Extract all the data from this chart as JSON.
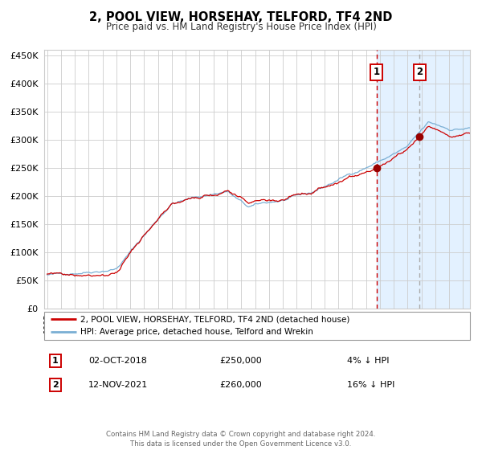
{
  "title": "2, POOL VIEW, HORSEHAY, TELFORD, TF4 2ND",
  "subtitle": "Price paid vs. HM Land Registry's House Price Index (HPI)",
  "legend_line1": "2, POOL VIEW, HORSEHAY, TELFORD, TF4 2ND (detached house)",
  "legend_line2": "HPI: Average price, detached house, Telford and Wrekin",
  "sale1_date": "02-OCT-2018",
  "sale1_price": "£250,000",
  "sale1_hpi": "4% ↓ HPI",
  "sale2_date": "12-NOV-2021",
  "sale2_price": "£260,000",
  "sale2_hpi": "16% ↓ HPI",
  "sale1_year": 2018.75,
  "sale1_value": 250000,
  "sale2_year": 2021.87,
  "sale2_value": 260000,
  "hpi_color": "#7aafd4",
  "price_color": "#cc0000",
  "marker_color": "#990000",
  "vline1_color": "#cc0000",
  "vline2_color": "#aaaaaa",
  "shade_color": "#ddeeff",
  "background_color": "#ffffff",
  "grid_color": "#cccccc",
  "ylim": [
    0,
    460000
  ],
  "xlim_start": 1994.8,
  "xlim_end": 2025.5,
  "footer": "Contains HM Land Registry data © Crown copyright and database right 2024.\nThis data is licensed under the Open Government Licence v3.0."
}
